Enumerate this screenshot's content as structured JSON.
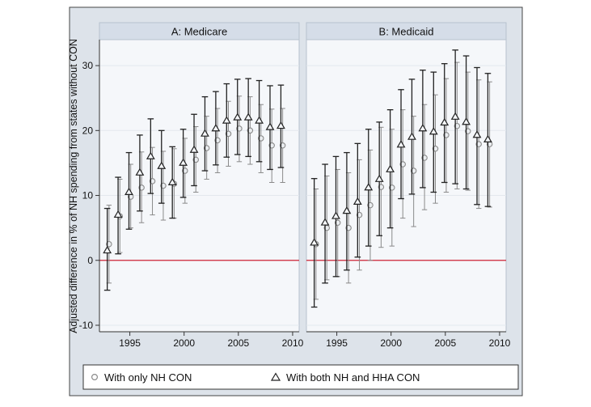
{
  "chart_data": {
    "type": "scatter",
    "ylabel": "Adjusted difference in % of NH spending from states without CON",
    "xlabel": "",
    "xlim": [
      1992.2,
      2010.6
    ],
    "ylim": [
      -11,
      34
    ],
    "x_ticks": [
      1995,
      2000,
      2005,
      2010
    ],
    "y_ticks": [
      -10,
      0,
      10,
      20,
      30
    ],
    "x_tick_labels": [
      "1995",
      "2000",
      "2005",
      "2010"
    ],
    "y_tick_labels": [
      "-10",
      "0",
      "10",
      "20",
      "30"
    ],
    "reference_line": 0,
    "reference_line_color": "#cc2233",
    "legend": [
      {
        "marker": "circle",
        "label": "With only NH CON"
      },
      {
        "marker": "triangle",
        "label": "With both NH and HHA CON"
      }
    ],
    "colors": {
      "circle_series": "#8a8a8a",
      "triangle_series": "#222222",
      "panel_header": "#d5dde8",
      "plot_background": "#f5f7fa",
      "outer_background": "#dde3ea"
    },
    "panels": [
      {
        "title": "A: Medicare",
        "series": [
          {
            "name": "With only NH CON",
            "marker": "circle",
            "x": [
              1993,
              1994,
              1995,
              1996,
              1997,
              1998,
              1999,
              2000,
              2001,
              2002,
              2003,
              2004,
              2005,
              2006,
              2007,
              2008,
              2009
            ],
            "y": [
              2.5,
              6.8,
              9.8,
              11.2,
              12.2,
              11.5,
              11.8,
              13.8,
              15.5,
              17.3,
              18.5,
              19.5,
              20.3,
              20.0,
              18.8,
              17.7,
              17.7
            ],
            "lo": [
              -3.5,
              1.2,
              5.0,
              5.8,
              7.0,
              6.2,
              6.5,
              8.8,
              10.5,
              12.5,
              13.5,
              14.5,
              15.2,
              14.8,
              13.5,
              12.0,
              12.0
            ],
            "hi": [
              8.5,
              12.5,
              14.8,
              16.7,
              17.4,
              16.8,
              17.2,
              18.8,
              20.6,
              22.2,
              23.4,
              24.5,
              25.3,
              25.2,
              24.0,
              23.3,
              23.4
            ]
          },
          {
            "name": "With both NH and HHA CON",
            "marker": "triangle",
            "x": [
              1993,
              1994,
              1995,
              1996,
              1997,
              1998,
              1999,
              2000,
              2001,
              2002,
              2003,
              2004,
              2005,
              2006,
              2007,
              2008,
              2009
            ],
            "y": [
              1.5,
              7.0,
              10.5,
              13.5,
              16.0,
              14.5,
              12.0,
              15.0,
              17.0,
              19.5,
              20.3,
              21.5,
              22.0,
              22.0,
              21.5,
              20.5,
              20.7
            ],
            "lo": [
              -4.6,
              1.0,
              4.8,
              7.6,
              10.3,
              8.8,
              6.5,
              9.7,
              11.5,
              13.8,
              14.7,
              15.9,
              16.3,
              16.0,
              15.2,
              14.0,
              14.3
            ],
            "hi": [
              8.0,
              12.8,
              16.6,
              19.3,
              21.8,
              20.0,
              17.5,
              20.2,
              22.5,
              25.2,
              26.0,
              27.2,
              27.9,
              28.0,
              27.7,
              26.9,
              27.0
            ]
          }
        ]
      },
      {
        "title": "B: Medicaid",
        "series": [
          {
            "name": "With only NH CON",
            "marker": "circle",
            "x": [
              1993,
              1994,
              1995,
              1996,
              1997,
              1998,
              1999,
              2000,
              2001,
              2002,
              2003,
              2004,
              2005,
              2006,
              2007,
              2008,
              2009
            ],
            "y": [
              2.5,
              5.0,
              5.8,
              5.0,
              7.0,
              8.5,
              11.3,
              11.2,
              14.8,
              13.8,
              15.8,
              17.2,
              19.3,
              20.7,
              19.9,
              17.9,
              17.9
            ],
            "lo": [
              -6.0,
              -3.0,
              -2.5,
              -3.5,
              -1.5,
              0.0,
              2.0,
              2.2,
              6.5,
              5.2,
              7.8,
              8.8,
              10.5,
              11.0,
              10.8,
              8.0,
              8.2
            ],
            "hi": [
              11.0,
              13.0,
              14.0,
              13.5,
              15.5,
              17.0,
              20.5,
              20.2,
              23.2,
              22.2,
              24.0,
              25.5,
              28.0,
              30.5,
              29.0,
              27.8,
              27.5
            ]
          },
          {
            "name": "With both NH and HHA CON",
            "marker": "triangle",
            "x": [
              1993,
              1994,
              1995,
              1996,
              1997,
              1998,
              1999,
              2000,
              2001,
              2002,
              2003,
              2004,
              2005,
              2006,
              2007,
              2008,
              2009
            ],
            "y": [
              2.7,
              5.8,
              6.8,
              7.6,
              9.0,
              11.2,
              12.5,
              14.0,
              17.8,
              19.0,
              20.3,
              19.8,
              21.2,
              22.1,
              21.3,
              19.3,
              18.6
            ],
            "lo": [
              -7.2,
              -3.5,
              -2.5,
              -1.5,
              0.5,
              2.2,
              3.8,
              5.0,
              9.5,
              10.2,
              11.2,
              10.5,
              12.0,
              11.8,
              11.0,
              8.6,
              8.3
            ],
            "hi": [
              12.6,
              14.8,
              16.0,
              16.6,
              18.0,
              20.2,
              21.3,
              23.2,
              26.3,
              27.9,
              29.3,
              29.0,
              30.3,
              32.4,
              31.5,
              29.7,
              28.8
            ]
          }
        ]
      }
    ]
  }
}
